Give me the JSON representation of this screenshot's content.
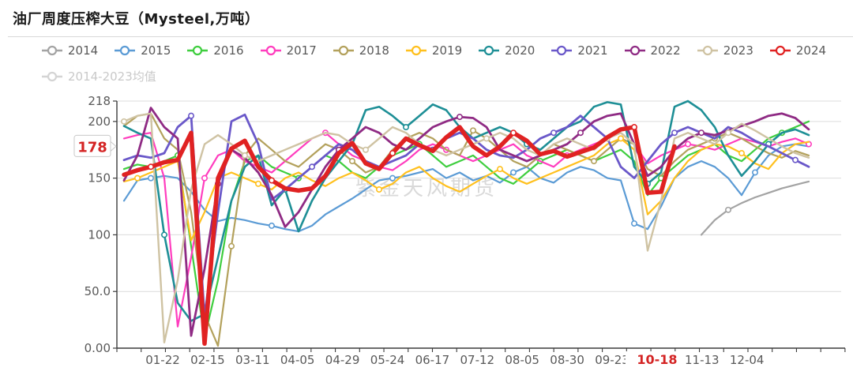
{
  "title": "油厂周度压榨大豆（Mysteel,万吨）",
  "watermark": "紫金天风期货",
  "legend": {
    "items": [
      {
        "label": "2014",
        "color": "#a3a3a3",
        "row": 1,
        "disabled": false
      },
      {
        "label": "2015",
        "color": "#5b9bd5",
        "row": 1,
        "disabled": false
      },
      {
        "label": "2016",
        "color": "#3fce3f",
        "row": 1,
        "disabled": false
      },
      {
        "label": "2017",
        "color": "#ff3dbe",
        "row": 1,
        "disabled": false
      },
      {
        "label": "2018",
        "color": "#b3a15c",
        "row": 1,
        "disabled": false
      },
      {
        "label": "2019",
        "color": "#ffc01e",
        "row": 1,
        "disabled": false
      },
      {
        "label": "2020",
        "color": "#1e8f96",
        "row": 1,
        "disabled": false
      },
      {
        "label": "2021",
        "color": "#6a58c9",
        "row": 1,
        "disabled": false
      },
      {
        "label": "2022",
        "color": "#8f2b84",
        "row": 1,
        "disabled": false
      },
      {
        "label": "2023",
        "color": "#cfc3a3",
        "row": 1,
        "disabled": false
      },
      {
        "label": "2024",
        "color": "#e02222",
        "row": 1,
        "disabled": false
      },
      {
        "label": "2014-2023均值",
        "color": "#d4d4d4",
        "row": 2,
        "disabled": true
      }
    ]
  },
  "chart_data": {
    "type": "line",
    "title": "油厂周度压榨大豆（Mysteel,万吨）",
    "ylabel": "万吨",
    "ylim": [
      0,
      218
    ],
    "grid": true,
    "legend_position": "top",
    "y_ticks": [
      {
        "value": 0,
        "label": "0.00"
      },
      {
        "value": 50,
        "label": "50.0"
      },
      {
        "value": 100,
        "label": "100"
      },
      {
        "value": 150,
        "label": "150"
      },
      {
        "value": 200,
        "label": "200"
      },
      {
        "value": 218,
        "label": "218"
      }
    ],
    "current_value": {
      "label": "178",
      "value": 178,
      "color": "#d42424"
    },
    "x_tick_labels": [
      "01-22",
      "02-15",
      "03-11",
      "04-05",
      "04-29",
      "05-24",
      "06-17",
      "07-12",
      "08-05",
      "08-30",
      "09-23",
      "10-18",
      "11-13",
      "12-04"
    ],
    "x_highlight_label": "10-18",
    "weeks": 52,
    "series": [
      {
        "name": "2014",
        "color": "#a3a3a3",
        "width": 2.2,
        "values": [
          null,
          null,
          null,
          null,
          null,
          null,
          null,
          null,
          null,
          null,
          null,
          null,
          null,
          null,
          null,
          null,
          null,
          null,
          null,
          null,
          null,
          null,
          null,
          null,
          null,
          null,
          null,
          null,
          null,
          null,
          null,
          null,
          null,
          null,
          null,
          null,
          null,
          null,
          null,
          null,
          null,
          null,
          null,
          100,
          113,
          122,
          128,
          133,
          137,
          141,
          144,
          147
        ]
      },
      {
        "name": "2015",
        "color": "#5b9bd5",
        "width": 2.2,
        "values": [
          130,
          148,
          150,
          152,
          150,
          138,
          122,
          112,
          115,
          113,
          110,
          108,
          105,
          103,
          108,
          118,
          125,
          132,
          140,
          148,
          150,
          152,
          155,
          158,
          150,
          155,
          148,
          152,
          146,
          155,
          160,
          150,
          146,
          155,
          160,
          157,
          150,
          148,
          110,
          105,
          125,
          150,
          160,
          165,
          160,
          150,
          135,
          155,
          170,
          178,
          180,
          178
        ]
      },
      {
        "name": "2016",
        "color": "#3fce3f",
        "width": 2.2,
        "values": [
          158,
          162,
          160,
          165,
          170,
          90,
          9,
          60,
          130,
          165,
          170,
          160,
          155,
          150,
          160,
          170,
          165,
          155,
          150,
          160,
          170,
          175,
          180,
          170,
          160,
          165,
          170,
          160,
          150,
          145,
          155,
          165,
          170,
          175,
          170,
          165,
          170,
          175,
          165,
          135,
          150,
          160,
          170,
          175,
          180,
          170,
          165,
          175,
          185,
          190,
          195,
          200
        ]
      },
      {
        "name": "2017",
        "color": "#ff3dbe",
        "width": 2.2,
        "values": [
          185,
          188,
          190,
          150,
          19,
          80,
          150,
          170,
          175,
          165,
          160,
          155,
          165,
          175,
          185,
          190,
          180,
          170,
          165,
          160,
          157,
          165,
          175,
          180,
          175,
          170,
          165,
          170,
          175,
          180,
          170,
          165,
          160,
          170,
          175,
          180,
          185,
          190,
          180,
          163,
          170,
          175,
          180,
          178,
          175,
          180,
          185,
          182,
          178,
          182,
          185,
          180
        ]
      },
      {
        "name": "2018",
        "color": "#b3a15c",
        "width": 2.2,
        "values": [
          196,
          205,
          207,
          185,
          175,
          120,
          30,
          2,
          90,
          170,
          185,
          175,
          165,
          160,
          170,
          180,
          175,
          165,
          155,
          160,
          175,
          185,
          190,
          185,
          175,
          170,
          192,
          185,
          175,
          165,
          160,
          170,
          180,
          175,
          170,
          165,
          175,
          185,
          180,
          158,
          152,
          165,
          175,
          180,
          185,
          190,
          185,
          178,
          172,
          168,
          174,
          170
        ]
      },
      {
        "name": "2019",
        "color": "#ffc01e",
        "width": 2.2,
        "values": [
          147,
          150,
          155,
          160,
          165,
          95,
          120,
          150,
          155,
          150,
          145,
          140,
          150,
          155,
          148,
          143,
          150,
          155,
          148,
          140,
          145,
          155,
          160,
          150,
          143,
          138,
          145,
          152,
          158,
          150,
          145,
          150,
          155,
          160,
          165,
          170,
          180,
          185,
          175,
          118,
          130,
          150,
          165,
          175,
          180,
          178,
          172,
          163,
          158,
          172,
          180,
          182
        ]
      },
      {
        "name": "2020",
        "color": "#1e8f96",
        "width": 2.6,
        "values": [
          196,
          190,
          185,
          100,
          40,
          24,
          30,
          80,
          130,
          160,
          170,
          126,
          140,
          103,
          130,
          150,
          165,
          180,
          210,
          213,
          205,
          195,
          205,
          215,
          210,
          195,
          185,
          190,
          195,
          190,
          180,
          175,
          185,
          195,
          200,
          213,
          217,
          215,
          160,
          145,
          155,
          213,
          218,
          210,
          195,
          170,
          152,
          165,
          180,
          190,
          193,
          188
        ]
      },
      {
        "name": "2021",
        "color": "#6a58c9",
        "width": 2.8,
        "values": [
          166,
          170,
          168,
          172,
          195,
          205,
          28,
          120,
          200,
          206,
          180,
          131,
          140,
          150,
          160,
          170,
          180,
          175,
          165,
          160,
          165,
          170,
          180,
          175,
          185,
          190,
          185,
          175,
          170,
          168,
          175,
          185,
          190,
          195,
          205,
          195,
          185,
          160,
          150,
          165,
          180,
          190,
          195,
          190,
          185,
          195,
          190,
          183,
          178,
          172,
          166,
          160
        ]
      },
      {
        "name": "2022",
        "color": "#8f2b84",
        "width": 2.8,
        "values": [
          148,
          170,
          212,
          195,
          185,
          11,
          70,
          145,
          175,
          168,
          155,
          135,
          107,
          120,
          140,
          160,
          175,
          185,
          195,
          190,
          180,
          175,
          185,
          195,
          200,
          204,
          203,
          195,
          175,
          170,
          165,
          170,
          175,
          180,
          190,
          200,
          205,
          207,
          180,
          152,
          160,
          175,
          185,
          190,
          188,
          192,
          196,
          200,
          205,
          207,
          203,
          193
        ]
      },
      {
        "name": "2023",
        "color": "#cfc3a3",
        "width": 2.4,
        "values": [
          200,
          205,
          207,
          5,
          60,
          140,
          180,
          188,
          180,
          170,
          165,
          170,
          175,
          180,
          185,
          190,
          188,
          180,
          175,
          185,
          195,
          190,
          180,
          175,
          170,
          175,
          180,
          185,
          190,
          185,
          175,
          170,
          180,
          185,
          180,
          175,
          185,
          190,
          180,
          86,
          130,
          185,
          190,
          185,
          180,
          190,
          198,
          192,
          185,
          178,
          172,
          168
        ]
      },
      {
        "name": "2024",
        "color": "#e02222",
        "width": 5.5,
        "values": [
          153,
          157,
          160,
          164,
          166,
          190,
          4,
          150,
          176,
          183,
          160,
          148,
          141,
          139,
          141,
          152,
          172,
          181,
          163,
          158,
          172,
          185,
          179,
          174,
          186,
          195,
          178,
          170,
          178,
          190,
          183,
          171,
          174,
          169,
          173,
          177,
          186,
          193,
          195,
          137,
          138,
          178,
          null,
          null,
          null,
          null,
          null,
          null,
          null,
          null,
          null,
          null
        ]
      },
      {
        "name": "2014-2023均值",
        "color": "#d4d4d4",
        "width": 2,
        "disabled": true,
        "values": null
      }
    ]
  }
}
